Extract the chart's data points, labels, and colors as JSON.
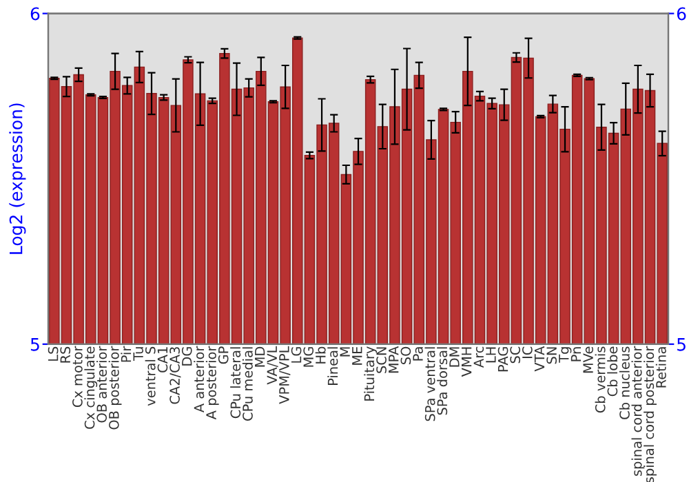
{
  "chart_data": {
    "type": "bar",
    "ylabel": "Log2 (expression)",
    "categories": [
      "LS",
      "RS",
      "Cx motor",
      "Cx cingulate",
      "OB anterior",
      "OB posterior",
      "Pir",
      "Tu",
      "ventral S",
      "CA1",
      "CA2/CA3",
      "DG",
      "A anterior",
      "A posterior",
      "GP",
      "CPu lateral",
      "CPu medial",
      "MD",
      "VA/VL",
      "VPM/VPL",
      "LG",
      "MG",
      "Hb",
      "Pineal",
      "M",
      "ME",
      "Pituitary",
      "SCN",
      "MPA",
      "SO",
      "Pa",
      "SPa ventral",
      "SPa dorsal",
      "DM",
      "VMH",
      "Arc",
      "LH",
      "PAG",
      "SC",
      "IC",
      "VTA",
      "SN",
      "Tg",
      "Pn",
      "MVe",
      "Cb vermis",
      "Cb lobe",
      "Cb nucleus",
      "spinal cord anterior",
      "spinal cord posterior",
      "Retina"
    ],
    "values": [
      5.804,
      5.779,
      5.815,
      5.754,
      5.746,
      5.825,
      5.782,
      5.838,
      5.758,
      5.746,
      5.722,
      5.86,
      5.757,
      5.736,
      5.879,
      5.771,
      5.775,
      5.825,
      5.733,
      5.778,
      5.926,
      5.571,
      5.663,
      5.668,
      5.513,
      5.583,
      5.8,
      5.658,
      5.718,
      5.771,
      5.813,
      5.618,
      5.71,
      5.671,
      5.825,
      5.75,
      5.728,
      5.724,
      5.867,
      5.865,
      5.688,
      5.726,
      5.65,
      5.813,
      5.803,
      5.656,
      5.638,
      5.711,
      5.771,
      5.767,
      5.607
    ],
    "errors": [
      0.003,
      0.03,
      0.02,
      0.003,
      0.003,
      0.054,
      0.025,
      0.047,
      0.063,
      0.008,
      0.08,
      0.009,
      0.095,
      0.008,
      0.014,
      0.079,
      0.027,
      0.042,
      0.003,
      0.065,
      0.003,
      0.01,
      0.079,
      0.026,
      0.028,
      0.039,
      0.01,
      0.067,
      0.113,
      0.123,
      0.039,
      0.058,
      0.003,
      0.032,
      0.103,
      0.014,
      0.016,
      0.047,
      0.014,
      0.06,
      0.003,
      0.026,
      0.068,
      0.003,
      0.003,
      0.069,
      0.032,
      0.078,
      0.072,
      0.049,
      0.037
    ],
    "color": "#b83232",
    "ylim": [
      5,
      6
    ],
    "yticks": [
      5,
      6
    ],
    "y2lim": [
      5,
      6
    ],
    "y2ticks": [
      5,
      6
    ],
    "grid": false,
    "legend": false
  }
}
